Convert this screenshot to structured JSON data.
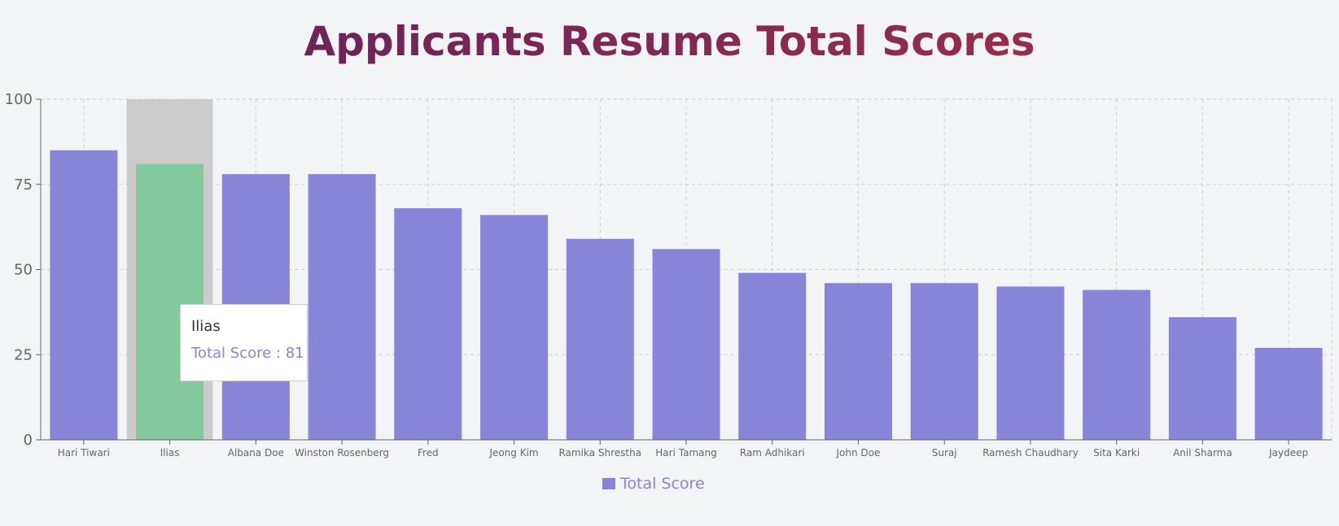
{
  "title": "Applicants Resume Total Scores",
  "colors": {
    "bar": "#8884d8",
    "active_bar": "#82ca9d",
    "hover_band": "#cccccc",
    "grid": "#cccccc",
    "axis": "#666666",
    "title_gradient": [
      "#5b1f5e",
      "#a83245"
    ]
  },
  "tooltip": {
    "name": "Ilias",
    "label": "Total Score",
    "separator": " : ",
    "value": "81"
  },
  "legend": {
    "label": "Total Score",
    "color": "#8884d8"
  },
  "chart_data": {
    "type": "bar",
    "categories": [
      "Hari Tiwari",
      "Ilias",
      "Albana Doe",
      "Winston Rosenberg",
      "Fred",
      "Jeong Kim",
      "Ramika Shrestha",
      "Hari Tamang",
      "Ram Adhikari",
      "John Doe",
      "Suraj",
      "Ramesh Chaudhary",
      "Sita Karki",
      "Anil Sharma",
      "Jaydeep"
    ],
    "series": [
      {
        "name": "Total Score",
        "values": [
          85,
          81,
          78,
          78,
          68,
          66,
          59,
          56,
          49,
          46,
          46,
          45,
          44,
          36,
          27
        ]
      }
    ],
    "ylim": [
      0,
      100
    ],
    "yticks": [
      0,
      25,
      50,
      75,
      100
    ],
    "active_index": 1,
    "grid": true,
    "legend_position": "bottom"
  }
}
